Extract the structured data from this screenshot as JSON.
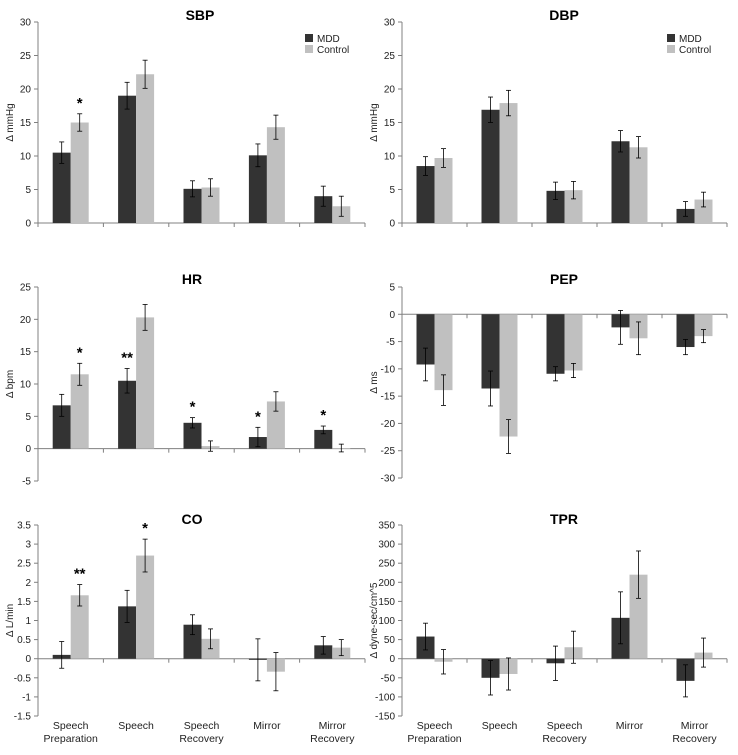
{
  "legend": {
    "mdd": "MDD",
    "control": "Control"
  },
  "colors": {
    "mdd": "#333333",
    "control": "#c0c0c0",
    "axis": "#808080",
    "error": "#000000"
  },
  "category_labels": [
    [
      "Speech",
      "Preparation"
    ],
    [
      "Speech"
    ],
    [
      "Speech",
      "Recovery"
    ],
    [
      "Mirror"
    ],
    [
      "Mirror",
      "Recovery"
    ]
  ],
  "chart_data": [
    {
      "id": "sbp",
      "type": "bar",
      "title": "SBP",
      "ylabel": "Δ mmHg",
      "ylim": [
        0,
        30
      ],
      "yticks": [
        "0",
        "5",
        "10",
        "15",
        "20",
        "25",
        "30"
      ],
      "tick_step": 5,
      "legend": true,
      "show_categories": false,
      "categories": [
        "Speech Preparation",
        "Speech",
        "Speech Recovery",
        "Mirror",
        "Mirror Recovery"
      ],
      "series": [
        {
          "name": "MDD",
          "values": [
            10.5,
            19,
            5.1,
            10.1,
            4
          ],
          "errors": [
            1.6,
            2,
            1.2,
            1.7,
            1.5
          ]
        },
        {
          "name": "Control",
          "values": [
            15,
            22.2,
            5.3,
            14.3,
            2.5
          ],
          "errors": [
            1.3,
            2.1,
            1.3,
            1.8,
            1.5
          ]
        }
      ],
      "significance": [
        {
          "category": 0,
          "series": 1,
          "label": "*"
        }
      ]
    },
    {
      "id": "dbp",
      "type": "bar",
      "title": "DBP",
      "ylabel": "Δ mmHg",
      "ylim": [
        0,
        30
      ],
      "yticks": [
        "0",
        "5",
        "10",
        "15",
        "20",
        "25",
        "30"
      ],
      "tick_step": 5,
      "legend": true,
      "show_categories": false,
      "categories": [
        "Speech Preparation",
        "Speech",
        "Speech Recovery",
        "Mirror",
        "Mirror Recovery"
      ],
      "series": [
        {
          "name": "MDD",
          "values": [
            8.5,
            16.9,
            4.8,
            12.2,
            2.1
          ],
          "errors": [
            1.4,
            1.9,
            1.3,
            1.6,
            1.1
          ]
        },
        {
          "name": "Control",
          "values": [
            9.7,
            17.9,
            4.9,
            11.3,
            3.5
          ],
          "errors": [
            1.4,
            1.9,
            1.3,
            1.6,
            1.1
          ]
        }
      ],
      "significance": []
    },
    {
      "id": "hr",
      "type": "bar",
      "title": "HR",
      "ylabel": "Δ bpm",
      "ylim": [
        -5,
        25
      ],
      "yticks": [
        "-5",
        "0",
        "5",
        "10",
        "15",
        "20",
        "25"
      ],
      "tick_step": 5,
      "legend": false,
      "show_categories": false,
      "categories": [
        "Speech Preparation",
        "Speech",
        "Speech Recovery",
        "Mirror",
        "Mirror Recovery"
      ],
      "series": [
        {
          "name": "MDD",
          "values": [
            6.7,
            10.5,
            4,
            1.8,
            2.9
          ],
          "errors": [
            1.7,
            1.9,
            0.8,
            1.5,
            0.6
          ]
        },
        {
          "name": "Control",
          "values": [
            11.5,
            20.3,
            0.4,
            7.3,
            0.1
          ],
          "errors": [
            1.7,
            2,
            0.8,
            1.5,
            0.6
          ]
        }
      ],
      "significance": [
        {
          "category": 0,
          "series": 1,
          "label": "*"
        },
        {
          "category": 1,
          "series": 0,
          "label": "**"
        },
        {
          "category": 2,
          "series": 0,
          "label": "*"
        },
        {
          "category": 3,
          "series": 0,
          "label": "*"
        },
        {
          "category": 4,
          "series": 0,
          "label": "*"
        }
      ]
    },
    {
      "id": "pep",
      "type": "bar",
      "title": "PEP",
      "ylabel": "Δ ms",
      "ylim": [
        -30,
        5
      ],
      "yticks": [
        "-30",
        "-25",
        "-20",
        "-15",
        "-10",
        "-5",
        "0",
        "5"
      ],
      "tick_step": 5,
      "legend": false,
      "show_categories": false,
      "categories": [
        "Speech Preparation",
        "Speech",
        "Speech Recovery",
        "Mirror",
        "Mirror Recovery"
      ],
      "series": [
        {
          "name": "MDD",
          "values": [
            -9.2,
            -13.6,
            -10.9,
            -2.4,
            -6
          ],
          "errors": [
            3,
            3.2,
            1.3,
            3.1,
            1.4
          ]
        },
        {
          "name": "Control",
          "values": [
            -13.9,
            -22.4,
            -10.3,
            -4.4,
            -4
          ],
          "errors": [
            2.8,
            3.1,
            1.3,
            3,
            1.2
          ]
        }
      ],
      "significance": []
    },
    {
      "id": "co",
      "type": "bar",
      "title": "CO",
      "ylabel": "Δ L/min",
      "ylim": [
        -1.5,
        3.5
      ],
      "yticks": [
        "-1.5",
        "-1",
        "-0.5",
        "0",
        "0.5",
        "1",
        "1.5",
        "2",
        "2.5",
        "3",
        "3.5"
      ],
      "tick_step": 0.5,
      "legend": false,
      "show_categories": true,
      "categories": [
        "Speech Preparation",
        "Speech",
        "Speech Recovery",
        "Mirror",
        "Mirror Recovery"
      ],
      "series": [
        {
          "name": "MDD",
          "values": [
            0.1,
            1.37,
            0.89,
            -0.03,
            0.35
          ],
          "errors": [
            0.35,
            0.42,
            0.26,
            0.55,
            0.23
          ]
        },
        {
          "name": "Control",
          "values": [
            1.66,
            2.7,
            0.52,
            -0.34,
            0.29
          ],
          "errors": [
            0.28,
            0.43,
            0.26,
            0.5,
            0.21
          ]
        }
      ],
      "significance": [
        {
          "category": 0,
          "series": 1,
          "label": "**"
        },
        {
          "category": 1,
          "series": 1,
          "label": "*"
        }
      ]
    },
    {
      "id": "tpr",
      "type": "bar",
      "title": "TPR",
      "ylabel": "Δ dyne-sec/cm^5",
      "ylim": [
        -150,
        350
      ],
      "yticks": [
        "-150",
        "-100",
        "-50",
        "0",
        "50",
        "100",
        "150",
        "200",
        "250",
        "300",
        "350"
      ],
      "tick_step": 50,
      "legend": false,
      "show_categories": true,
      "categories": [
        "Speech Preparation",
        "Speech",
        "Speech Recovery",
        "Mirror",
        "Mirror Recovery"
      ],
      "series": [
        {
          "name": "MDD",
          "values": [
            58,
            -50,
            -12,
            107,
            -58
          ],
          "errors": [
            35,
            45,
            45,
            68,
            42
          ]
        },
        {
          "name": "Control",
          "values": [
            -8,
            -40,
            30,
            220,
            16
          ],
          "errors": [
            32,
            42,
            42,
            62,
            38
          ]
        }
      ],
      "significance": []
    }
  ]
}
